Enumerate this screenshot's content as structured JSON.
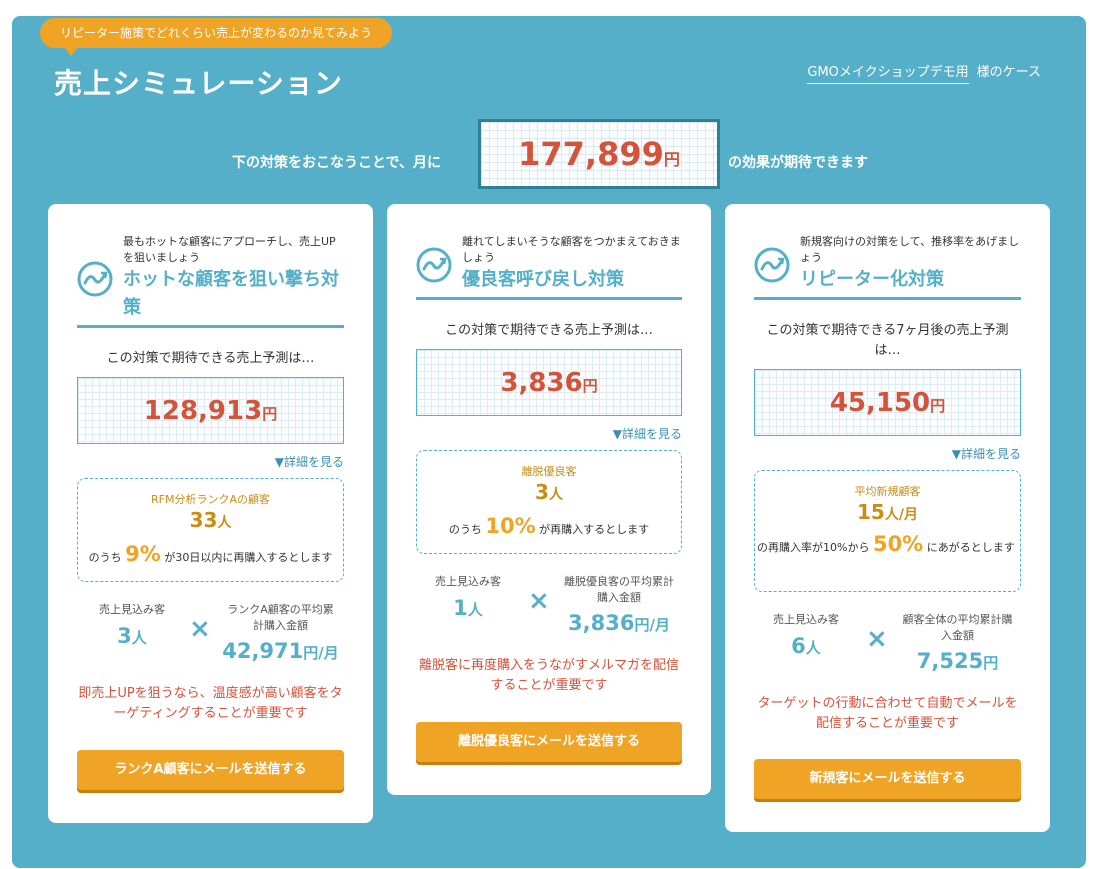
{
  "header": {
    "tag": "リピーター施策でどれくらい売上が変わるのか見てみよう",
    "title": "売上シミュレーション",
    "case_link": "GMOメイクショップデモ用",
    "case_suffix": "様のケース"
  },
  "headline": {
    "pre": "下の対策をおこなうことで、月に",
    "amount": "177,899",
    "unit": "円",
    "post": "の効果が期待できます"
  },
  "colors": {
    "panel": "#56afc8",
    "accent": "#f0a425",
    "red": "#d4533a",
    "gold": "#c88d15"
  },
  "cards": [
    {
      "icon": "boomerang-icon",
      "sub": "最もホットな顧客にアプローチし、売上UPを狙いましょう",
      "heading": "ホットな顧客を狙い撃ち対策",
      "lead": "この対策で期待できる売上予測は…",
      "amount": "128,913",
      "unit": "円",
      "detail": "▼詳細を見る",
      "segment_label": "RFM分析ランクAの顧客",
      "segment_count": "33",
      "segment_unit": "人",
      "rate_pre": "のうち",
      "rate": "9%",
      "rate_post": "が30日以内に再購入するとします",
      "left_label": "売上見込み客",
      "left_value": "3",
      "left_unit": "人",
      "times": "×",
      "right_label": "ランクA顧客の平均累計購入金額",
      "right_value": "42,971",
      "right_unit": "円/月",
      "note": "即売上UPを狙うなら、温度感が高い顧客をターゲティングすることが重要です",
      "button": "ランクA顧客にメールを送信する"
    },
    {
      "icon": "boomerang-icon",
      "sub": "離れてしまいそうな顧客をつかまえておきましょう",
      "heading": "優良客呼び戻し対策",
      "lead": "この対策で期待できる売上予測は…",
      "amount": "3,836",
      "unit": "円",
      "detail": "▼詳細を見る",
      "segment_label": "離脱優良客",
      "segment_count": "3",
      "segment_unit": "人",
      "rate_pre": "のうち",
      "rate": "10%",
      "rate_post": "が再購入するとします",
      "left_label": "売上見込み客",
      "left_value": "1",
      "left_unit": "人",
      "times": "×",
      "right_label": "離脱優良客の平均累計購入金額",
      "right_value": "3,836",
      "right_unit": "円/月",
      "note": "離脱客に再度購入をうながすメルマガを配信することが重要です",
      "button": "離脱優良客にメールを送信する"
    },
    {
      "icon": "boomerang-icon",
      "sub": "新規客向けの対策をして、推移率をあげましょう",
      "heading": "リピーター化対策",
      "lead": "この対策で期待できる7ヶ月後の売上予測は…",
      "amount": "45,150",
      "unit": "円",
      "detail": "▼詳細を見る",
      "segment_label": "平均新規顧客",
      "segment_count": "15",
      "segment_unit": "人/月",
      "rate_pre": "の再購入率が10%から",
      "rate": "50%",
      "rate_post": "にあがるとします",
      "left_label": "売上見込み客",
      "left_value": "6",
      "left_unit": "人",
      "times": "×",
      "right_label": "顧客全体の平均累計購入金額",
      "right_value": "7,525",
      "right_unit": "円",
      "note": "ターゲットの行動に合わせて自動でメールを配信することが重要です",
      "button": "新規客にメールを送信する"
    }
  ]
}
